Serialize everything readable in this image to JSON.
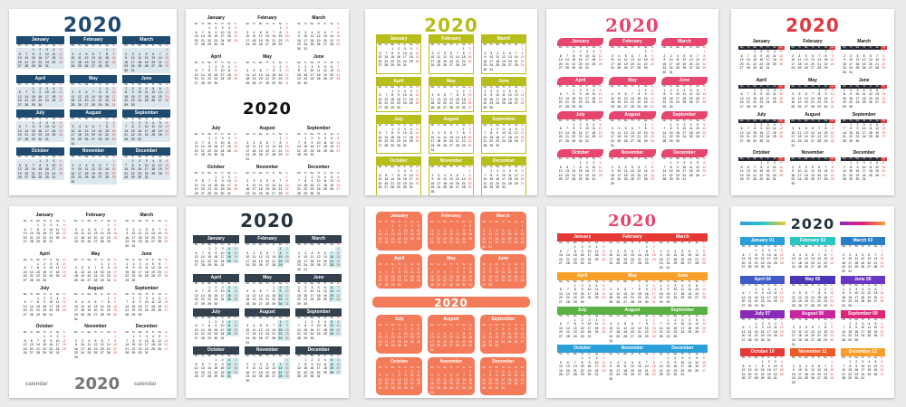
{
  "year": "2020",
  "caption_word": "calendar",
  "watermark_id": "283212384",
  "months": [
    "January",
    "February",
    "March",
    "April",
    "May",
    "June",
    "July",
    "August",
    "September",
    "October",
    "November",
    "December"
  ],
  "months_numbered": [
    "January 01",
    "February 02",
    "March 03",
    "April 04",
    "May 05",
    "June 06",
    "July 07",
    "August 08",
    "September 09",
    "October 10",
    "November 11",
    "December 12"
  ],
  "weekdays": [
    "Mo",
    "Tu",
    "We",
    "Th",
    "Fr",
    "Sa",
    "Su"
  ],
  "month_starts": [
    2,
    5,
    6,
    2,
    4,
    0,
    2,
    5,
    1,
    3,
    6,
    1
  ],
  "month_lengths": [
    31,
    29,
    31,
    30,
    31,
    30,
    31,
    31,
    30,
    31,
    30,
    31
  ],
  "colors": {
    "navy": "#1d4a6e",
    "olive": "#b7bd1b",
    "pink": "#e6456e",
    "dark": "#262b33",
    "teal": "#1fb0b6",
    "orange": "#f47b5a",
    "red": "#e0393e",
    "rainbow": [
      "#2a9fd8",
      "#2dc4c4",
      "#2a7ec8",
      "#3f59c8",
      "#4a35b8",
      "#6a36c4",
      "#8a2bb8",
      "#c9259d",
      "#e0247a",
      "#e53935",
      "#f05a28",
      "#f79f2b"
    ]
  }
}
